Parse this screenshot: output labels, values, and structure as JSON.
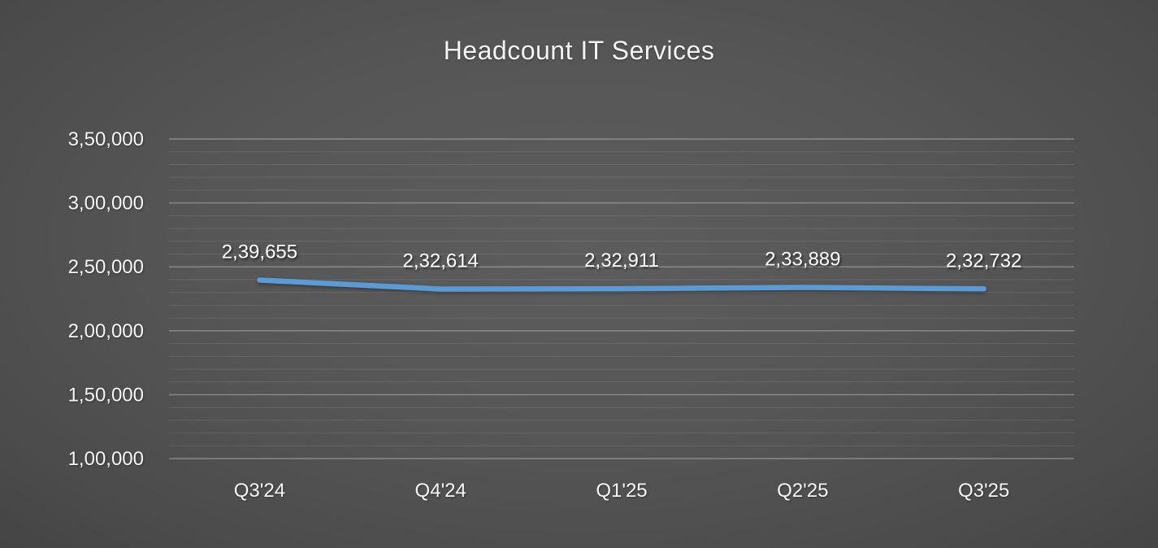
{
  "chart_data": {
    "type": "line",
    "title": "Headcount IT Services",
    "categories": [
      "Q3'24",
      "Q4'24",
      "Q1'25",
      "Q2'25",
      "Q3'25"
    ],
    "values": [
      239655,
      232614,
      232911,
      233889,
      232732
    ],
    "data_labels": [
      "2,39,655",
      "2,32,614",
      "2,32,911",
      "2,33,889",
      "2,32,732"
    ],
    "y_axis": {
      "min": 100000,
      "max": 350000,
      "major_unit": 50000,
      "minor_unit": 10000,
      "tick_labels_bottom_up": [
        "1,00,000",
        "1,50,000",
        "2,00,000",
        "2,50,000",
        "3,00,000",
        "3,50,000"
      ]
    },
    "x_axis": {
      "label": "",
      "tick_source": "categories"
    },
    "grid": {
      "major_horizontal": true,
      "minor_horizontal": true,
      "vertical": false
    },
    "legend": "none",
    "colors": {
      "line": "#5B9BD5",
      "title_text": "#f2f3f3",
      "axis_text": "#f5f5f5",
      "data_label_text": "#ffffff",
      "background_center": "#5d5d5d",
      "background_edge": "#2b2b2b",
      "gridline_major": "rgba(255,255,255,0.32)",
      "gridline_minor": "rgba(255,255,255,0.10)"
    },
    "line_width": 6.5
  }
}
